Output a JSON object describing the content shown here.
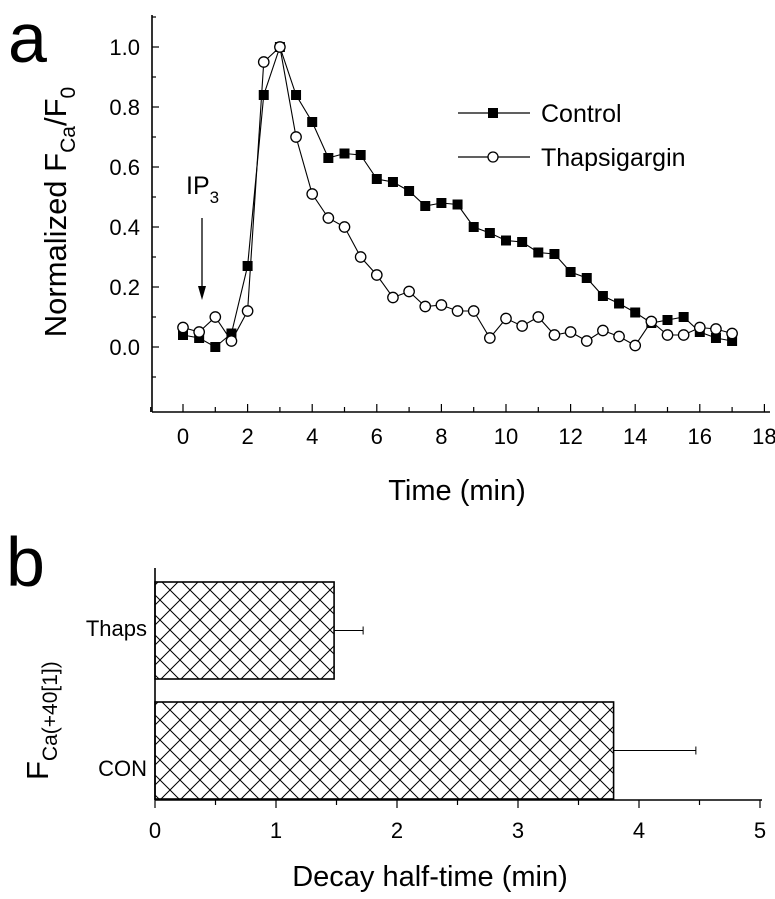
{
  "chart_data": [
    {
      "panel_label": "a",
      "type": "line",
      "xlabel": "Time (min)",
      "ylabel_main": "Normalized F",
      "ylabel_sub1": "Ca",
      "ylabel_slash": "/F",
      "ylabel_sub2": "0",
      "xlim": [
        -1,
        18
      ],
      "ylim": [
        -0.1,
        1.1
      ],
      "xticks": [
        0,
        2,
        4,
        6,
        8,
        10,
        12,
        14,
        16,
        18
      ],
      "yticks": [
        "0.0",
        "0.2",
        "0.4",
        "0.6",
        "0.8",
        "1.0"
      ],
      "grid": false,
      "legend_position": "top-right",
      "annotation": {
        "text": "IP",
        "sub": "3",
        "x": 0.5
      },
      "x": [
        0,
        0.5,
        1,
        1.5,
        2,
        2.5,
        3,
        3.5,
        4,
        4.5,
        5,
        5.5,
        6,
        6.5,
        7,
        7.5,
        8,
        8.5,
        9,
        9.5,
        10,
        10.5,
        11,
        11.5,
        12,
        12.5,
        13,
        13.5,
        14,
        14.5,
        15,
        15.5,
        16,
        16.5,
        17
      ],
      "series": [
        {
          "name": "Control",
          "marker": "filled-square",
          "values": [
            0.04,
            0.03,
            0.0,
            0.045,
            0.27,
            0.84,
            1.0,
            0.84,
            0.75,
            0.63,
            0.645,
            0.64,
            0.56,
            0.55,
            0.52,
            0.47,
            0.48,
            0.475,
            0.4,
            0.38,
            0.355,
            0.35,
            0.315,
            0.31,
            0.25,
            0.23,
            0.17,
            0.145,
            0.115,
            0.08,
            0.09,
            0.1,
            0.05,
            0.03,
            0.02
          ]
        },
        {
          "name": "Thapsigargin",
          "marker": "open-circle",
          "values": [
            0.065,
            0.05,
            0.1,
            0.02,
            0.12,
            0.95,
            1.0,
            0.7,
            0.51,
            0.43,
            0.4,
            0.3,
            0.24,
            0.165,
            0.185,
            0.135,
            0.14,
            0.12,
            0.12,
            0.03,
            0.095,
            0.07,
            0.1,
            0.04,
            0.05,
            0.02,
            0.055,
            0.035,
            0.005,
            0.085,
            0.04,
            0.04,
            0.065,
            0.06,
            0.045
          ]
        }
      ]
    },
    {
      "panel_label": "b",
      "type": "bar",
      "orientation": "horizontal",
      "xlabel": "Decay half-time (min)",
      "ylabel_main": "F",
      "ylabel_sub": "Ca(+40[1])",
      "xlim": [
        0,
        5
      ],
      "xticks": [
        "0",
        "1",
        "2",
        "3",
        "4",
        "5"
      ],
      "categories": [
        "Thaps",
        "CON"
      ],
      "values": [
        1.48,
        3.79
      ],
      "errors": [
        0.24,
        0.68
      ],
      "fill": "crosshatch",
      "grid": false
    }
  ]
}
